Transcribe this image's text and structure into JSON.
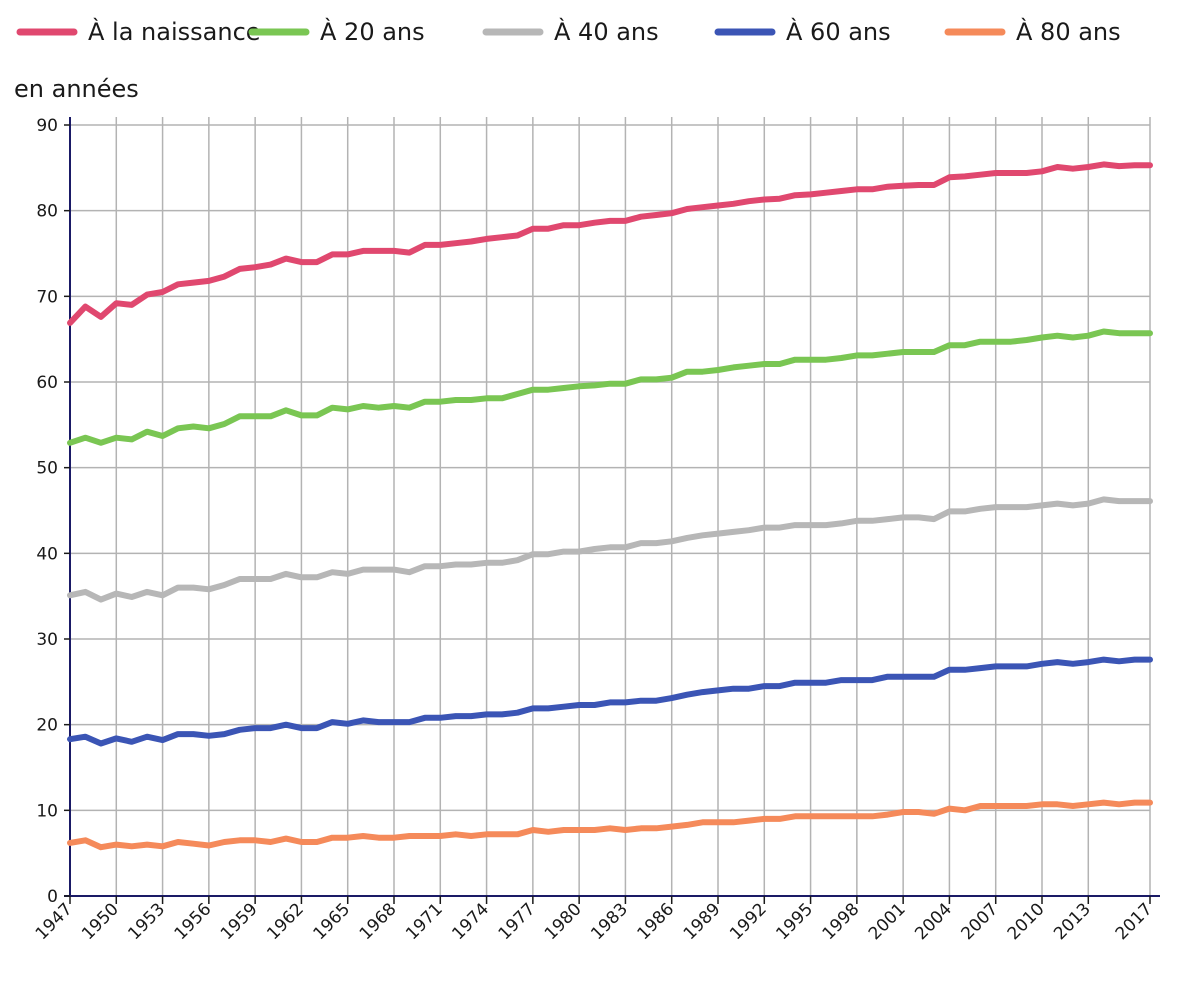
{
  "chart_data": {
    "type": "line",
    "ylabel": "en années",
    "ylim": [
      0,
      90
    ],
    "yticks": [
      0,
      10,
      20,
      30,
      40,
      50,
      60,
      70,
      80,
      90
    ],
    "xlim": [
      1947,
      2017
    ],
    "xticks": [
      1947,
      1950,
      1953,
      1956,
      1959,
      1962,
      1965,
      1968,
      1971,
      1974,
      1977,
      1980,
      1983,
      1986,
      1989,
      1992,
      1995,
      1998,
      2001,
      2004,
      2007,
      2010,
      2013,
      2017
    ],
    "grid": true,
    "legend_position": "top",
    "x": [
      1947,
      1948,
      1949,
      1950,
      1951,
      1952,
      1953,
      1954,
      1955,
      1956,
      1957,
      1958,
      1959,
      1960,
      1961,
      1962,
      1963,
      1964,
      1965,
      1966,
      1967,
      1968,
      1969,
      1970,
      1971,
      1972,
      1973,
      1974,
      1975,
      1976,
      1977,
      1978,
      1979,
      1980,
      1981,
      1982,
      1983,
      1984,
      1985,
      1986,
      1987,
      1988,
      1989,
      1990,
      1991,
      1992,
      1993,
      1994,
      1995,
      1996,
      1997,
      1998,
      1999,
      2000,
      2001,
      2002,
      2003,
      2004,
      2005,
      2006,
      2007,
      2008,
      2009,
      2010,
      2011,
      2012,
      2013,
      2014,
      2015,
      2016,
      2017
    ],
    "series": [
      {
        "name": "À la naissance",
        "color": "#e0486f",
        "values": [
          66.9,
          68.8,
          67.6,
          69.2,
          69.0,
          70.2,
          70.5,
          71.4,
          71.6,
          71.8,
          72.3,
          73.2,
          73.4,
          73.7,
          74.4,
          74.0,
          74.0,
          74.9,
          74.9,
          75.3,
          75.3,
          75.3,
          75.1,
          76.0,
          76.0,
          76.2,
          76.4,
          76.7,
          76.9,
          77.1,
          77.9,
          77.9,
          78.3,
          78.3,
          78.6,
          78.8,
          78.8,
          79.3,
          79.5,
          79.7,
          80.2,
          80.4,
          80.6,
          80.8,
          81.1,
          81.3,
          81.4,
          81.8,
          81.9,
          82.1,
          82.3,
          82.5,
          82.5,
          82.8,
          82.9,
          83.0,
          83.0,
          83.9,
          84.0,
          84.2,
          84.4,
          84.4,
          84.4,
          84.6,
          85.1,
          84.9,
          85.1,
          85.4,
          85.2,
          85.3,
          85.3
        ]
      },
      {
        "name": "À 20 ans",
        "color": "#7ac653",
        "values": [
          52.9,
          53.5,
          52.9,
          53.5,
          53.3,
          54.2,
          53.7,
          54.6,
          54.8,
          54.6,
          55.1,
          56.0,
          56.0,
          56.0,
          56.7,
          56.1,
          56.1,
          57.0,
          56.8,
          57.2,
          57.0,
          57.2,
          57.0,
          57.7,
          57.7,
          57.9,
          57.9,
          58.1,
          58.1,
          58.6,
          59.1,
          59.1,
          59.3,
          59.5,
          59.6,
          59.8,
          59.8,
          60.3,
          60.3,
          60.5,
          61.2,
          61.2,
          61.4,
          61.7,
          61.9,
          62.1,
          62.1,
          62.6,
          62.6,
          62.6,
          62.8,
          63.1,
          63.1,
          63.3,
          63.5,
          63.5,
          63.5,
          64.3,
          64.3,
          64.7,
          64.7,
          64.7,
          64.9,
          65.2,
          65.4,
          65.2,
          65.4,
          65.9,
          65.7,
          65.7,
          65.7
        ]
      },
      {
        "name": "À 40 ans",
        "color": "#b7b7b7",
        "values": [
          35.1,
          35.5,
          34.6,
          35.3,
          34.9,
          35.5,
          35.1,
          36.0,
          36.0,
          35.8,
          36.3,
          37.0,
          37.0,
          37.0,
          37.6,
          37.2,
          37.2,
          37.8,
          37.6,
          38.1,
          38.1,
          38.1,
          37.8,
          38.5,
          38.5,
          38.7,
          38.7,
          38.9,
          38.9,
          39.2,
          39.9,
          39.9,
          40.2,
          40.2,
          40.5,
          40.7,
          40.7,
          41.2,
          41.2,
          41.4,
          41.8,
          42.1,
          42.3,
          42.5,
          42.7,
          43.0,
          43.0,
          43.3,
          43.3,
          43.3,
          43.5,
          43.8,
          43.8,
          44.0,
          44.2,
          44.2,
          44.0,
          44.9,
          44.9,
          45.2,
          45.4,
          45.4,
          45.4,
          45.6,
          45.8,
          45.6,
          45.8,
          46.3,
          46.1,
          46.1,
          46.1
        ]
      },
      {
        "name": "À 60 ans",
        "color": "#3b55b5",
        "values": [
          18.3,
          18.6,
          17.8,
          18.4,
          18.0,
          18.6,
          18.2,
          18.9,
          18.9,
          18.7,
          18.9,
          19.4,
          19.6,
          19.6,
          20.0,
          19.6,
          19.6,
          20.3,
          20.1,
          20.5,
          20.3,
          20.3,
          20.3,
          20.8,
          20.8,
          21.0,
          21.0,
          21.2,
          21.2,
          21.4,
          21.9,
          21.9,
          22.1,
          22.3,
          22.3,
          22.6,
          22.6,
          22.8,
          22.8,
          23.1,
          23.5,
          23.8,
          24.0,
          24.2,
          24.2,
          24.5,
          24.5,
          24.9,
          24.9,
          24.9,
          25.2,
          25.2,
          25.2,
          25.6,
          25.6,
          25.6,
          25.6,
          26.4,
          26.4,
          26.6,
          26.8,
          26.8,
          26.8,
          27.1,
          27.3,
          27.1,
          27.3,
          27.6,
          27.4,
          27.6,
          27.6
        ]
      },
      {
        "name": "À 80 ans",
        "color": "#f58a5a",
        "values": [
          6.2,
          6.5,
          5.7,
          6.0,
          5.8,
          6.0,
          5.8,
          6.3,
          6.1,
          5.9,
          6.3,
          6.5,
          6.5,
          6.3,
          6.7,
          6.3,
          6.3,
          6.8,
          6.8,
          7.0,
          6.8,
          6.8,
          7.0,
          7.0,
          7.0,
          7.2,
          7.0,
          7.2,
          7.2,
          7.2,
          7.7,
          7.5,
          7.7,
          7.7,
          7.7,
          7.9,
          7.7,
          7.9,
          7.9,
          8.1,
          8.3,
          8.6,
          8.6,
          8.6,
          8.8,
          9.0,
          9.0,
          9.3,
          9.3,
          9.3,
          9.3,
          9.3,
          9.3,
          9.5,
          9.8,
          9.8,
          9.6,
          10.2,
          10.0,
          10.5,
          10.5,
          10.5,
          10.5,
          10.7,
          10.7,
          10.5,
          10.7,
          10.9,
          10.7,
          10.9,
          10.9
        ]
      }
    ]
  }
}
